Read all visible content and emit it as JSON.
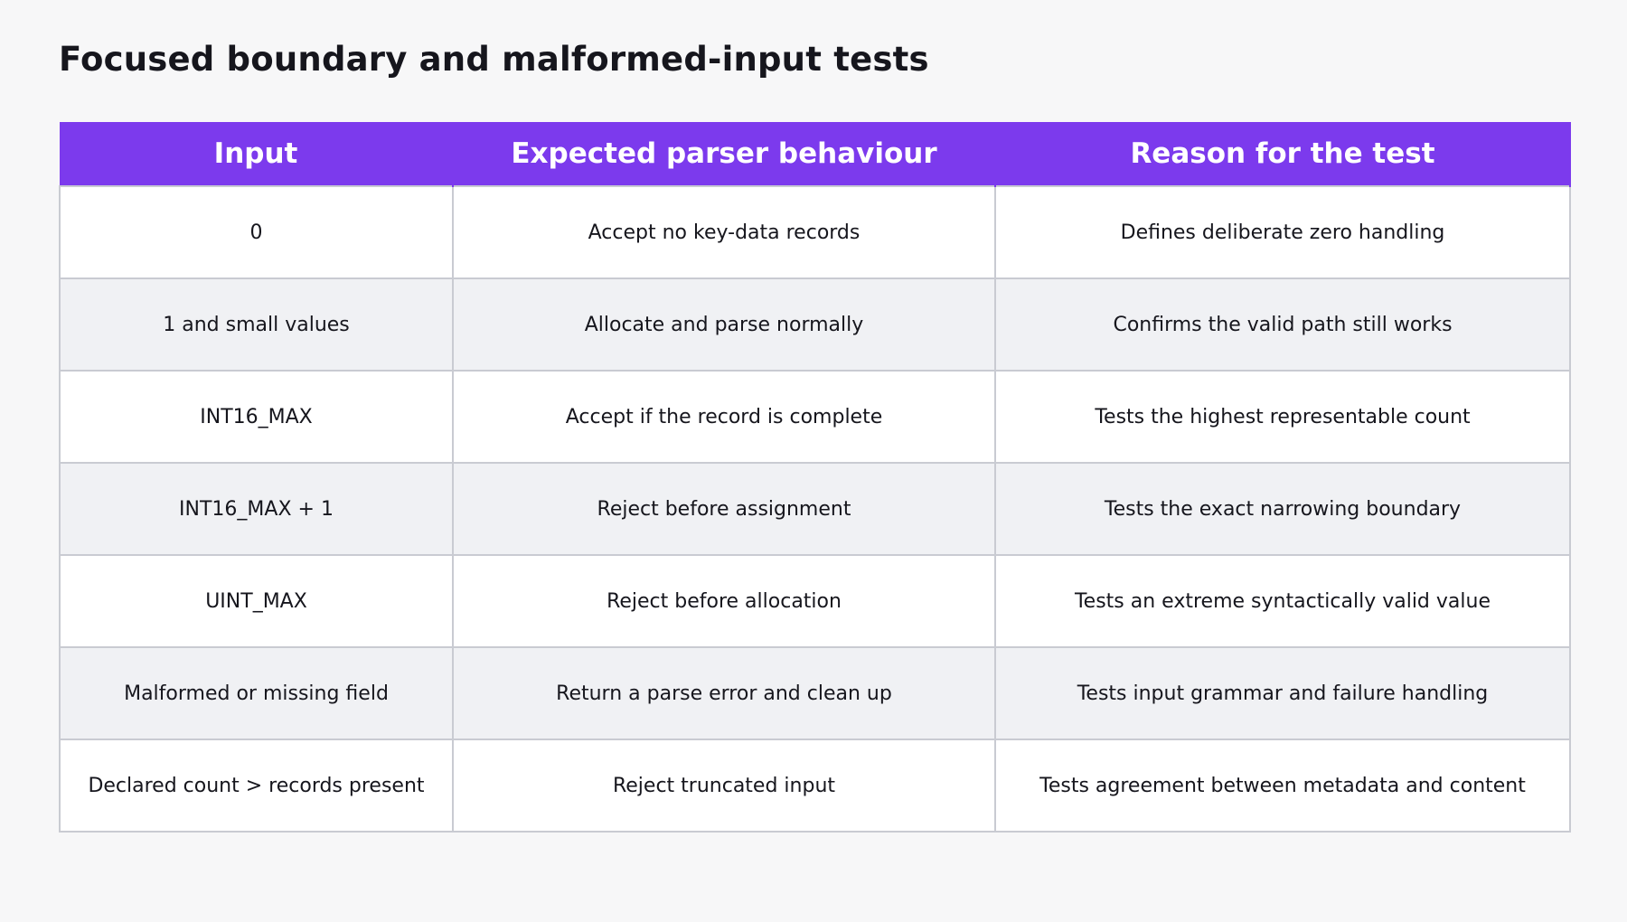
{
  "title": "Focused boundary and malformed-input tests",
  "colors": {
    "header_bg": "#7c3aed",
    "header_text": "#ffffff",
    "row_alt": "#f0f1f4",
    "border": "#c9cbd2"
  },
  "table": {
    "headers": [
      "Input",
      "Expected parser behaviour",
      "Reason for the test"
    ],
    "rows": [
      [
        "0",
        "Accept no key-data records",
        "Defines deliberate zero handling"
      ],
      [
        "1 and small values",
        "Allocate and parse normally",
        "Confirms the valid path still works"
      ],
      [
        "INT16_MAX",
        "Accept if the record is complete",
        "Tests the highest representable count"
      ],
      [
        "INT16_MAX + 1",
        "Reject before assignment",
        "Tests the exact narrowing boundary"
      ],
      [
        "UINT_MAX",
        "Reject before allocation",
        "Tests an extreme syntactically valid value"
      ],
      [
        "Malformed or missing field",
        "Return a parse error and clean up",
        "Tests input grammar and failure handling"
      ],
      [
        "Declared count > records present",
        "Reject truncated input",
        "Tests agreement between metadata and content"
      ]
    ]
  }
}
